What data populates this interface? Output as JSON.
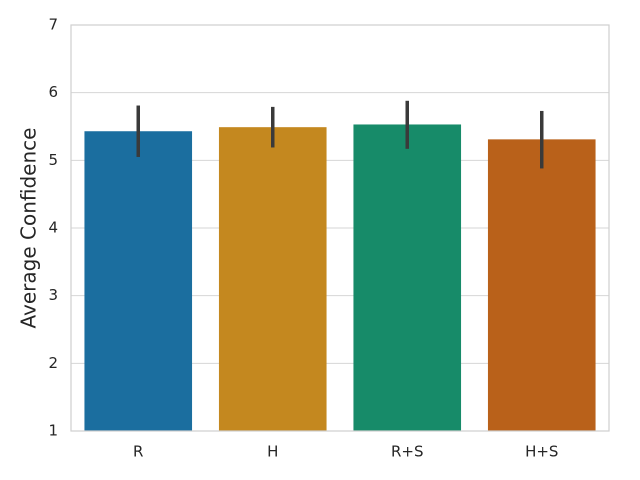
{
  "chart_data": {
    "type": "bar",
    "ylabel": "Average Confidence",
    "categories": [
      "R",
      "H",
      "R+S",
      "H+S"
    ],
    "values": [
      5.43,
      5.49,
      5.53,
      5.31
    ],
    "ci_lower": [
      5.05,
      5.19,
      5.17,
      4.88
    ],
    "ci_upper": [
      5.81,
      5.79,
      5.88,
      5.73
    ],
    "colors": [
      "#1b6e9f",
      "#c4881f",
      "#178b69",
      "#b9611a"
    ],
    "error_color": "#3a3a3a",
    "ylim": [
      1,
      7
    ],
    "yticks": [
      1,
      2,
      3,
      4,
      5,
      6,
      7
    ],
    "grid": true
  }
}
